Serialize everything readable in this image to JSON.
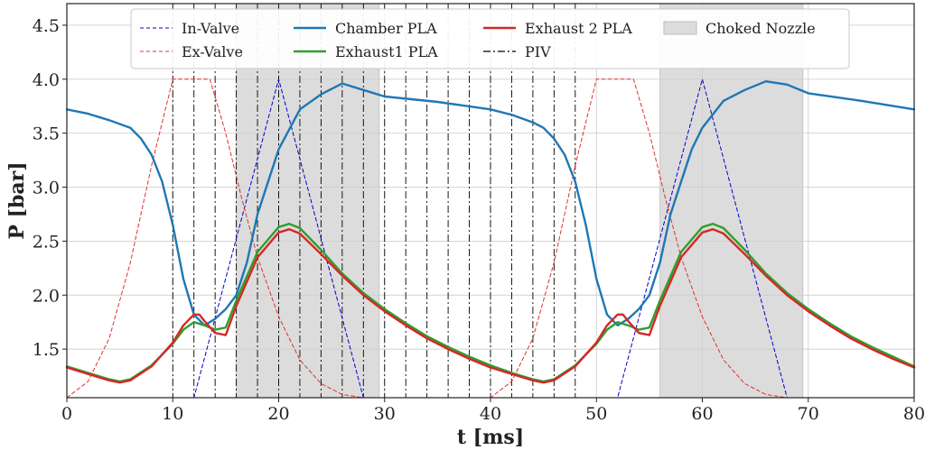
{
  "chart_data": {
    "type": "line",
    "title": "",
    "xlabel": "t [ms]",
    "ylabel": "P [bar]",
    "xlim": [
      0,
      80
    ],
    "ylim": [
      1.05,
      4.7
    ],
    "xticks": [
      0,
      10,
      20,
      30,
      40,
      50,
      60,
      70,
      80
    ],
    "yticks": [
      1.5,
      2.0,
      2.5,
      3.0,
      3.5,
      4.0,
      4.5
    ],
    "xtick_labels": [
      "0",
      "10",
      "20",
      "30",
      "40",
      "50",
      "60",
      "70",
      "80"
    ],
    "ytick_labels": [
      "1.5",
      "2.0",
      "2.5",
      "3.0",
      "3.5",
      "4.0",
      "4.5"
    ],
    "grid": true,
    "legend_position": "top-center",
    "shaded_regions": [
      {
        "name": "Choked Nozzle",
        "x_start": 16,
        "x_end": 29.5,
        "color": "#dcdcdc"
      },
      {
        "name": "Choked Nozzle",
        "x_start": 56,
        "x_end": 69.5,
        "color": "#dcdcdc"
      }
    ],
    "piv_lines": {
      "name": "PIV",
      "x": [
        10,
        12,
        14,
        16,
        18,
        20,
        22,
        24,
        26,
        28,
        30,
        32,
        34,
        36,
        38,
        40,
        42,
        44,
        46,
        48
      ],
      "color": "#000000"
    },
    "series": [
      {
        "name": "In-Valve",
        "color": "#0000cc",
        "style": "dashed",
        "x": [
          0,
          12,
          20,
          28,
          52,
          60,
          68,
          80
        ],
        "y": [
          1.05,
          1.05,
          4.0,
          1.05,
          1.05,
          4.0,
          1.05,
          1.05
        ]
      },
      {
        "name": "Ex-Valve",
        "color": "#e03030",
        "style": "dashed",
        "x": [
          0,
          2,
          4,
          6,
          8,
          10,
          11.5,
          13.5,
          15,
          16.5,
          18,
          20,
          22,
          24,
          26,
          28,
          30,
          40,
          42,
          44,
          46,
          48,
          50,
          51.5,
          53.5,
          55,
          56.5,
          58,
          60,
          62,
          64,
          66,
          68,
          70,
          80
        ],
        "y": [
          1.05,
          1.2,
          1.6,
          2.3,
          3.2,
          4.0,
          4.0,
          4.0,
          3.5,
          2.9,
          2.35,
          1.8,
          1.4,
          1.18,
          1.08,
          1.05,
          1.05,
          1.05,
          1.2,
          1.6,
          2.3,
          3.2,
          4.0,
          4.0,
          4.0,
          3.5,
          2.9,
          2.35,
          1.8,
          1.4,
          1.18,
          1.08,
          1.05,
          1.05,
          1.05
        ]
      },
      {
        "name": "Chamber PLA",
        "color": "#1f77b4",
        "style": "solid",
        "x": [
          0,
          2,
          4,
          6,
          7,
          8,
          9,
          10,
          11,
          12,
          13,
          14,
          15,
          16,
          17,
          18,
          19,
          20,
          22,
          24,
          26,
          28,
          30,
          35,
          40,
          42,
          44,
          45,
          46,
          47,
          48,
          49,
          50,
          51,
          52,
          53,
          54,
          55,
          56,
          57,
          58,
          59,
          60,
          62,
          64,
          66,
          68,
          70,
          75,
          80
        ],
        "y": [
          3.72,
          3.68,
          3.62,
          3.55,
          3.45,
          3.3,
          3.05,
          2.65,
          2.15,
          1.82,
          1.72,
          1.78,
          1.87,
          2.0,
          2.3,
          2.75,
          3.05,
          3.35,
          3.72,
          3.86,
          3.96,
          3.9,
          3.84,
          3.79,
          3.72,
          3.67,
          3.6,
          3.55,
          3.45,
          3.3,
          3.05,
          2.65,
          2.15,
          1.82,
          1.72,
          1.78,
          1.87,
          2.0,
          2.3,
          2.75,
          3.05,
          3.35,
          3.55,
          3.8,
          3.9,
          3.98,
          3.95,
          3.87,
          3.8,
          3.72
        ]
      },
      {
        "name": "Exhaust1 PLA",
        "color": "#2ca02c",
        "style": "solid",
        "x": [
          0,
          2,
          4,
          5,
          6,
          8,
          10,
          11,
          12,
          13,
          14,
          15,
          16,
          18,
          20,
          21,
          22,
          24,
          26,
          28,
          30,
          32,
          34,
          36,
          38,
          40,
          42,
          44,
          45,
          46,
          48,
          50,
          51,
          52,
          53,
          54,
          55,
          56,
          58,
          60,
          61,
          62,
          64,
          66,
          68,
          70,
          72,
          74,
          76,
          78,
          80
        ],
        "y": [
          1.34,
          1.28,
          1.22,
          1.2,
          1.22,
          1.35,
          1.55,
          1.68,
          1.75,
          1.72,
          1.68,
          1.7,
          1.95,
          2.4,
          2.63,
          2.66,
          2.62,
          2.42,
          2.2,
          2.02,
          1.87,
          1.74,
          1.62,
          1.52,
          1.43,
          1.35,
          1.28,
          1.22,
          1.2,
          1.22,
          1.35,
          1.55,
          1.68,
          1.75,
          1.72,
          1.68,
          1.7,
          1.95,
          2.4,
          2.63,
          2.66,
          2.62,
          2.42,
          2.2,
          2.02,
          1.87,
          1.74,
          1.62,
          1.52,
          1.43,
          1.34
        ]
      },
      {
        "name": "Exhaust 2 PLA",
        "color": "#d62728",
        "style": "solid",
        "x": [
          0,
          2,
          4,
          5,
          6,
          8,
          10,
          11,
          12,
          12.5,
          13,
          14,
          15,
          16,
          18,
          20,
          21,
          22,
          24,
          26,
          28,
          30,
          32,
          34,
          36,
          38,
          40,
          42,
          44,
          45,
          46,
          48,
          50,
          51,
          52,
          52.5,
          53,
          54,
          55,
          56,
          58,
          60,
          61,
          62,
          64,
          66,
          68,
          70,
          72,
          74,
          76,
          78,
          80
        ],
        "y": [
          1.33,
          1.27,
          1.21,
          1.19,
          1.21,
          1.34,
          1.56,
          1.72,
          1.82,
          1.82,
          1.76,
          1.65,
          1.63,
          1.9,
          2.35,
          2.58,
          2.61,
          2.57,
          2.38,
          2.18,
          2.0,
          1.85,
          1.72,
          1.6,
          1.5,
          1.41,
          1.33,
          1.27,
          1.21,
          1.19,
          1.21,
          1.34,
          1.56,
          1.72,
          1.82,
          1.82,
          1.76,
          1.65,
          1.63,
          1.9,
          2.35,
          2.58,
          2.61,
          2.57,
          2.38,
          2.18,
          2.0,
          1.85,
          1.72,
          1.6,
          1.5,
          1.41,
          1.33
        ]
      }
    ],
    "legend": [
      {
        "label": "In-Valve",
        "kind": "line",
        "color": "#0000cc",
        "style": "dashed"
      },
      {
        "label": "Ex-Valve",
        "kind": "line",
        "color": "#e03030",
        "style": "dashed"
      },
      {
        "label": "Chamber PLA",
        "kind": "line",
        "color": "#1f77b4",
        "style": "solid"
      },
      {
        "label": "Exhaust1 PLA",
        "kind": "line",
        "color": "#2ca02c",
        "style": "solid"
      },
      {
        "label": "Exhaust 2 PLA",
        "kind": "line",
        "color": "#d62728",
        "style": "solid"
      },
      {
        "label": "PIV",
        "kind": "line",
        "color": "#000000",
        "style": "dashdot"
      },
      {
        "label": "Choked Nozzle",
        "kind": "patch",
        "color": "#dcdcdc",
        "style": "solid"
      }
    ]
  }
}
